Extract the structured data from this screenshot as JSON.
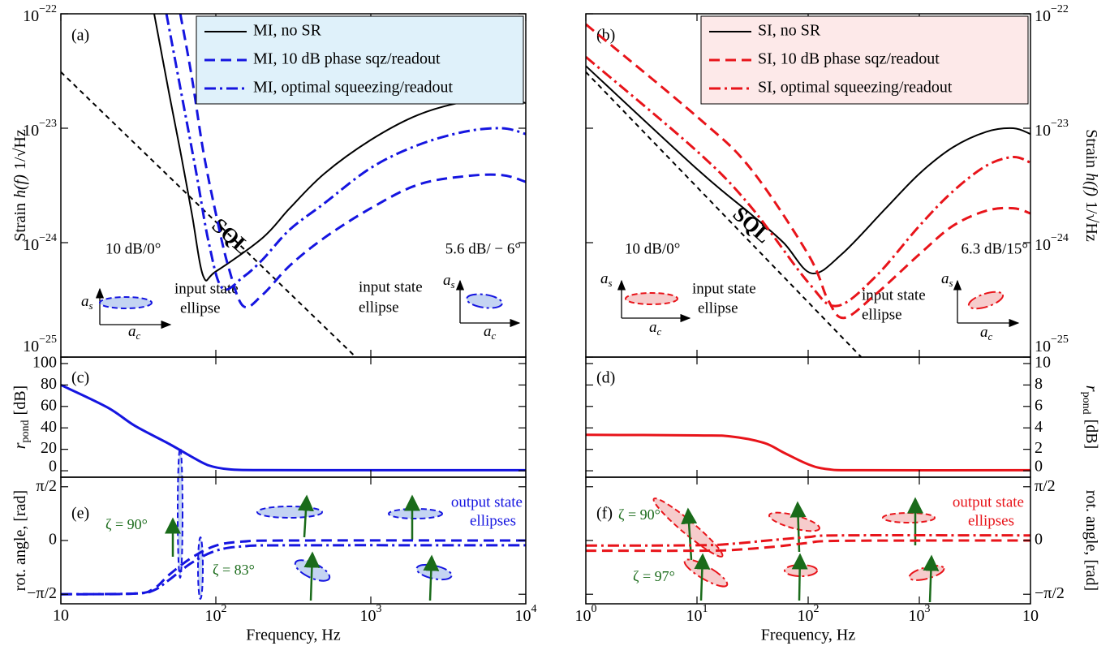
{
  "chart_data": [
    {
      "type": "line",
      "panel": "(a)",
      "xscale": "log",
      "yscale": "log",
      "xlim": [
        10,
        10000
      ],
      "ylim": [
        1e-25,
        1e-22
      ],
      "xticks": [
        10,
        100,
        1000,
        10000
      ],
      "yticks": [
        {
          "value": 1e-22,
          "label": "10",
          "power": "−22"
        },
        {
          "value": 1e-23,
          "label": "10",
          "power": "−23"
        },
        {
          "value": 1e-24,
          "label": "10",
          "power": "−24"
        },
        {
          "value": 1e-25,
          "label": "10",
          "power": "−25"
        }
      ],
      "ylabel": {
        "text": "Strain",
        "var": "h(f)",
        "unit": "1/√Hz"
      },
      "legend": "upper right",
      "legend_facecolor": "#dff1fa",
      "series": [
        {
          "name": "MI, no SR",
          "color": "#000000",
          "dash": "solid",
          "x": [
            40,
            50,
            60,
            70,
            83,
            100,
            200,
            300,
            500,
            1000,
            2000,
            4000,
            7000,
            10000
          ],
          "values": [
            1e-22,
            2e-23,
            5.6e-24,
            1.8e-24,
            5.1e-25,
            5.6e-25,
            1.1e-24,
            2e-24,
            4e-24,
            7.9e-24,
            1.3e-23,
            1.7e-23,
            1.8e-23,
            1.66e-23
          ]
        },
        {
          "name": "MI, 10 dB phase sqz/readout",
          "color": "#1515e0",
          "dash": "dashed",
          "x": [
            59,
            70,
            83,
            100,
            120,
            150,
            200,
            300,
            500,
            1000,
            2000,
            4000,
            7000,
            10000
          ],
          "values": [
            1e-22,
            2.8e-23,
            6.3e-24,
            1.8e-24,
            6.3e-25,
            2.8e-25,
            3.5e-25,
            6.3e-25,
            1.1e-24,
            2e-24,
            3.2e-24,
            3.8e-24,
            3.9e-24,
            3.4e-24
          ]
        },
        {
          "name": "MI, optimal squeezing/readout",
          "color": "#1515e0",
          "dash": "dashdot",
          "x": [
            48,
            60,
            75,
            90,
            110,
            150,
            200,
            300,
            500,
            1000,
            2000,
            4000,
            7000,
            10000
          ],
          "values": [
            1e-22,
            2e-23,
            4e-24,
            1e-24,
            4e-25,
            5e-25,
            7.1e-25,
            1.3e-24,
            2.2e-24,
            4.5e-24,
            7.1e-24,
            9.3e-24,
            1e-23,
            8.9e-24
          ]
        }
      ],
      "sql": {
        "label": "SQL",
        "x": [
          10,
          800
        ],
        "values": [
          3.1e-23,
          1e-25
        ]
      },
      "annotations": [
        "10 dB/0°",
        "5.6 dB/ − 6°",
        "input state",
        "ellipse",
        "input state",
        "ellipse"
      ],
      "axis_labels": [
        {
          "main": "a",
          "sub": "s"
        },
        {
          "main": "a",
          "sub": "c"
        },
        {
          "main": "a",
          "sub": "s"
        },
        {
          "main": "a",
          "sub": "c"
        }
      ]
    },
    {
      "type": "line",
      "panel": "(b)",
      "xscale": "log",
      "yscale": "log",
      "xlim": [
        1,
        10000
      ],
      "ylim": [
        1e-25,
        1e-22
      ],
      "xticks": [
        1,
        10,
        100,
        1000,
        10000
      ],
      "yticks": [
        {
          "value": 1e-22,
          "label": "10",
          "power": "−22"
        },
        {
          "value": 1e-23,
          "label": "10",
          "power": "−23"
        },
        {
          "value": 1e-24,
          "label": "10",
          "power": "−24"
        },
        {
          "value": 1e-25,
          "label": "10",
          "power": "−25"
        }
      ],
      "ylabel": {
        "text": "Strain",
        "var": "h(f)",
        "unit": "1/√Hz"
      },
      "legend": "upper right",
      "legend_facecolor": "#fde9e9",
      "series": [
        {
          "name": "SI, no SR",
          "color": "#000000",
          "dash": "solid",
          "x": [
            1,
            10,
            30,
            60,
            107,
            200,
            500,
            1000,
            2000,
            4000,
            7000,
            10000
          ],
          "values": [
            3.5e-23,
            4.4e-24,
            1.8e-24,
            1e-24,
            5.4e-25,
            7.9e-25,
            2e-24,
            4e-24,
            6.8e-24,
            9.3e-24,
            1e-23,
            8.9e-24
          ]
        },
        {
          "name": "SI, 10 dB phase sqz/readout",
          "color": "#e8141a",
          "dash": "dashed",
          "x": [
            1,
            10,
            30,
            100,
            150,
            210,
            400,
            1000,
            2000,
            4000,
            7000,
            10000
          ],
          "values": [
            8.1e-23,
            1.26e-23,
            4.5e-24,
            7.9e-25,
            3.2e-25,
            2.2e-25,
            3.5e-25,
            7.9e-25,
            1.4e-24,
            1.9e-24,
            2e-24,
            1.8e-24
          ]
        },
        {
          "name": "SI, optimal squeezing/readout",
          "color": "#e8141a",
          "dash": "dashdot",
          "x": [
            1,
            10,
            30,
            100,
            180,
            400,
            1000,
            2000,
            4000,
            7000,
            10000
          ],
          "values": [
            4.2e-23,
            6.3e-24,
            2.1e-24,
            4.5e-25,
            2.8e-25,
            5e-25,
            1.4e-24,
            2.8e-24,
            4.7e-24,
            5.6e-24,
            5e-24
          ]
        }
      ],
      "sql": {
        "label": "SQL",
        "x": [
          1,
          300
        ],
        "values": [
          3.1e-23,
          1e-25
        ]
      },
      "annotations": [
        "10 dB/0°",
        "6.3 dB/15°",
        "input state",
        "ellipse",
        "input state",
        "ellipse"
      ],
      "axis_labels": [
        {
          "main": "a",
          "sub": "s"
        },
        {
          "main": "a",
          "sub": "c"
        },
        {
          "main": "a",
          "sub": "s"
        },
        {
          "main": "a",
          "sub": "c"
        }
      ]
    },
    {
      "type": "line",
      "panel": "(c)",
      "xscale": "log",
      "xlim": [
        10,
        10000
      ],
      "ylim": [
        -6,
        106
      ],
      "xticks": [
        10,
        100,
        1000,
        10000
      ],
      "yticks": [
        0,
        20,
        40,
        60,
        80,
        100
      ],
      "ylabel": {
        "main": "r",
        "sub": "pond",
        "rest": "[dB]"
      },
      "series": [
        {
          "color": "#1515e0",
          "dash": "solid",
          "x": [
            10,
            20,
            30,
            50,
            70,
            90,
            120,
            200,
            1000,
            10000
          ],
          "values": [
            80,
            59,
            42,
            25,
            13,
            5,
            1.5,
            0.6,
            0.5,
            0.5
          ]
        }
      ]
    },
    {
      "type": "line",
      "panel": "(d)",
      "xscale": "log",
      "xlim": [
        1,
        10000
      ],
      "ylim": [
        -0.6,
        10.6
      ],
      "xticks": [
        1,
        10,
        100,
        1000,
        10000
      ],
      "yticks": [
        0,
        2,
        4,
        6,
        8,
        10
      ],
      "ylabel": {
        "main": "r",
        "sub": "pond",
        "rest": "[dB]"
      },
      "series": [
        {
          "color": "#e8141a",
          "dash": "solid",
          "x": [
            1,
            10,
            20,
            40,
            60,
            100,
            150,
            300,
            10000
          ],
          "values": [
            3.35,
            3.3,
            3.2,
            2.6,
            1.7,
            0.6,
            0.15,
            0.05,
            0.05
          ]
        }
      ]
    },
    {
      "type": "line",
      "panel": "(e)",
      "xscale": "log",
      "xlim": [
        10,
        10000
      ],
      "ylim": [
        -1.85,
        1.85
      ],
      "xticks": [
        10,
        {
          "value": 100,
          "label": "10",
          "power": "2"
        },
        {
          "value": 1000,
          "label": "10",
          "power": "3"
        },
        {
          "value": 10000,
          "label": "10",
          "power": "4"
        }
      ],
      "yticks": [
        {
          "value": -1.5708,
          "label": "−π/2"
        },
        0,
        {
          "value": 1.5708,
          "label": "π/2"
        }
      ],
      "ylabel": {
        "text": "rot. angle, [rad]"
      },
      "xlabel": "Frequency, Hz",
      "series": [
        {
          "color": "#1515e0",
          "dash": "dashed",
          "x": [
            10,
            30,
            40,
            50,
            70,
            100,
            150,
            300,
            10000
          ],
          "values": [
            -1.57,
            -1.55,
            -1.4,
            -1.0,
            -0.5,
            -0.15,
            -0.03,
            0,
            0
          ]
        },
        {
          "color": "#1515e0",
          "dash": "dashdot",
          "x": [
            10,
            30,
            40,
            50,
            70,
            100,
            150,
            300,
            10000
          ],
          "values": [
            -1.57,
            -1.55,
            -1.45,
            -1.15,
            -0.65,
            -0.3,
            -0.17,
            -0.14,
            -0.14
          ]
        }
      ],
      "annotations": [
        "output state",
        "ellipses"
      ],
      "zeta_labels": [
        "ζ = 90°",
        "ζ = 83°"
      ]
    },
    {
      "type": "line",
      "panel": "(f)",
      "xscale": "log",
      "xlim": [
        1,
        10000
      ],
      "ylim": [
        -1.85,
        1.85
      ],
      "xticks": [
        {
          "value": 1,
          "label": "10",
          "power": "0"
        },
        {
          "value": 10,
          "label": "10",
          "power": "1"
        },
        {
          "value": 100,
          "label": "10",
          "power": "2"
        },
        {
          "value": 1000,
          "label": "10",
          "power": "3"
        },
        {
          "value": 10000,
          "label": "10"
        }
      ],
      "yticks": [
        {
          "value": -1.5708,
          "label": "−π/2"
        },
        0,
        {
          "value": 1.5708,
          "label": "π/2"
        }
      ],
      "ylabel": {
        "text": "rot. angle, [rad]"
      },
      "xlabel": "Frequency, Hz",
      "series": [
        {
          "color": "#e8141a",
          "dash": "dashed",
          "x": [
            1,
            10,
            20,
            50,
            100,
            200,
            10000
          ],
          "values": [
            -0.3,
            -0.3,
            -0.28,
            -0.18,
            -0.07,
            -0.01,
            0
          ]
        },
        {
          "color": "#e8141a",
          "dash": "dashdot",
          "x": [
            1,
            10,
            20,
            50,
            100,
            200,
            10000
          ],
          "values": [
            -0.15,
            -0.14,
            -0.1,
            0.02,
            0.1,
            0.15,
            0.15
          ]
        }
      ],
      "annotations": [
        "output state",
        "ellipses"
      ],
      "zeta_labels": [
        "ζ = 90°",
        "ζ = 97°"
      ]
    }
  ]
}
